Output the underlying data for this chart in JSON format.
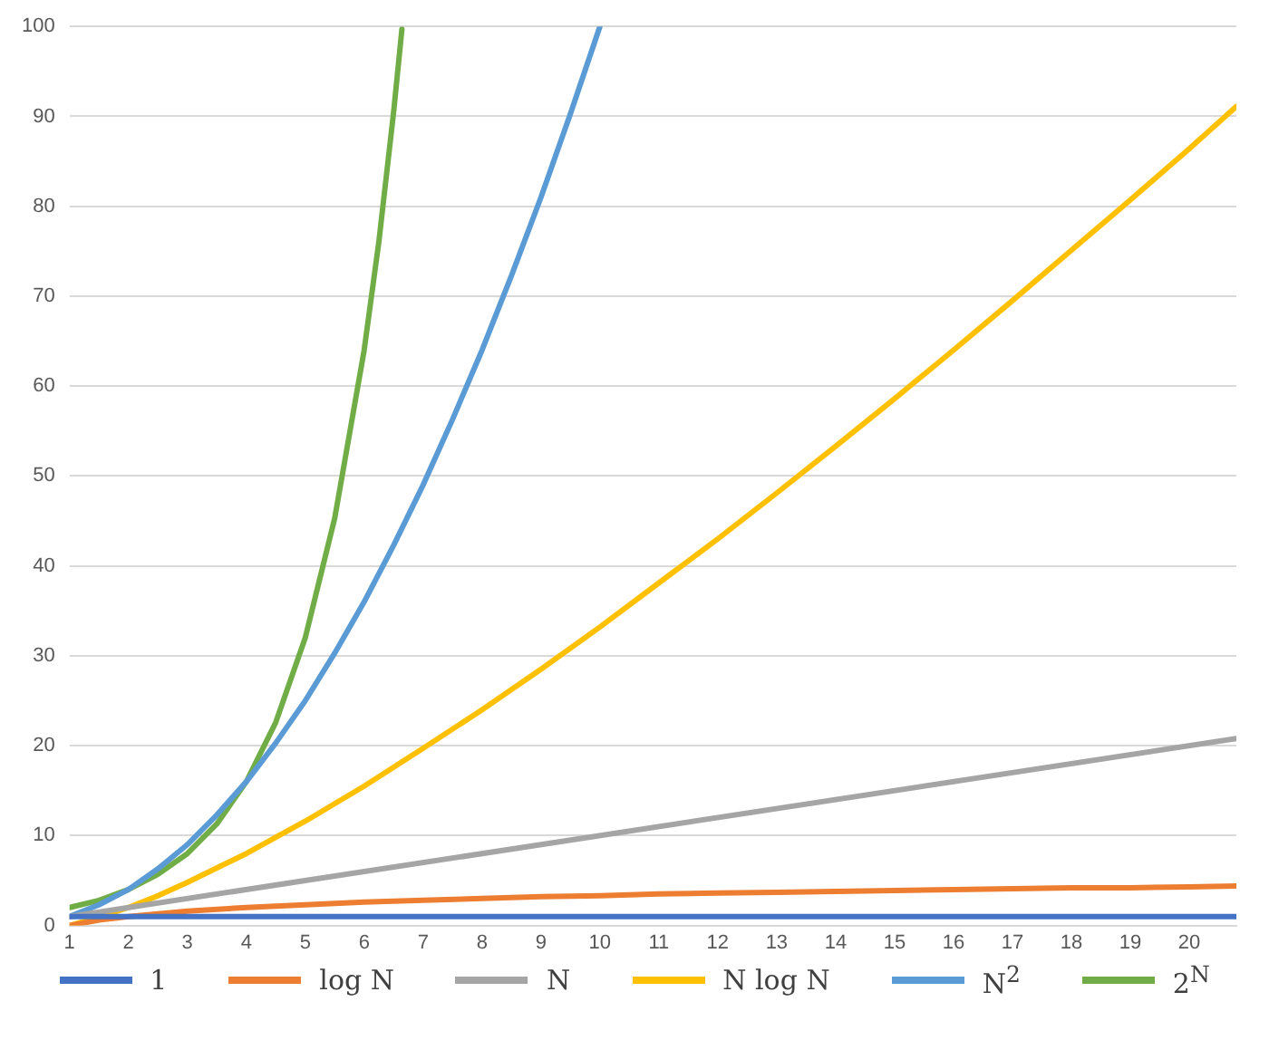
{
  "chart_data": {
    "type": "line",
    "xlim": [
      1,
      20.8
    ],
    "xticks": [
      1,
      2,
      3,
      4,
      5,
      6,
      7,
      8,
      9,
      10,
      11,
      12,
      13,
      14,
      15,
      16,
      17,
      18,
      19,
      20
    ],
    "ylim": [
      0,
      100
    ],
    "yticks": [
      0,
      10,
      20,
      30,
      40,
      50,
      60,
      70,
      80,
      90,
      100
    ],
    "grid": "y",
    "legend": "bottom",
    "series": [
      {
        "name": "1",
        "color": "#4472c4",
        "x": [
          1,
          20.8
        ],
        "values": [
          1,
          1
        ]
      },
      {
        "name": "log N",
        "color": "#ed7d31",
        "x": [
          1,
          1.5,
          2,
          2.5,
          3,
          4,
          5,
          6,
          7,
          8,
          9,
          10,
          11,
          12,
          13,
          14,
          15,
          16,
          17,
          18,
          19,
          20,
          20.8
        ],
        "values": [
          0,
          0.6,
          1,
          1.3,
          1.6,
          2,
          2.3,
          2.6,
          2.8,
          3,
          3.2,
          3.3,
          3.5,
          3.6,
          3.7,
          3.8,
          3.9,
          4,
          4.1,
          4.2,
          4.2,
          4.3,
          4.4
        ]
      },
      {
        "name": "N",
        "color": "#a5a5a5",
        "x": [
          1,
          20.8
        ],
        "values": [
          1,
          20.8
        ]
      },
      {
        "name": "N log N",
        "color": "#ffc000",
        "x": [
          1,
          1.5,
          2,
          2.5,
          3,
          4,
          5,
          6,
          7,
          8,
          9,
          10,
          11,
          12,
          13,
          14,
          15,
          16,
          17,
          18,
          19,
          20,
          20.8
        ],
        "values": [
          0,
          0.9,
          2,
          3.3,
          4.8,
          8,
          11.6,
          15.5,
          19.7,
          24,
          28.5,
          33.2,
          38.1,
          43,
          48.1,
          53.3,
          58.6,
          64,
          69.5,
          75.1,
          80.7,
          86.4,
          91.1
        ]
      },
      {
        "name": "N$^{2}$",
        "color": "#5b9bd5",
        "x": [
          1,
          1.5,
          2,
          2.5,
          3,
          3.5,
          4,
          4.5,
          5,
          5.5,
          6,
          6.5,
          7,
          7.5,
          8,
          8.5,
          9,
          9.5,
          10
        ],
        "values": [
          1,
          2.3,
          4,
          6.3,
          9,
          12.3,
          16,
          20.3,
          25,
          30.3,
          36,
          42.3,
          49,
          56.3,
          64,
          72.3,
          81,
          90.3,
          100
        ]
      },
      {
        "name": "2$^{N}$",
        "color": "#70ad47",
        "x": [
          1,
          1.5,
          2,
          2.5,
          3,
          3.5,
          4,
          4.5,
          5,
          5.5,
          6,
          6.25,
          6.5,
          6.64
        ],
        "values": [
          2,
          2.8,
          4,
          5.7,
          8,
          11.3,
          16,
          22.6,
          32,
          45.3,
          64,
          76.1,
          90.5,
          99.7
        ]
      }
    ]
  }
}
